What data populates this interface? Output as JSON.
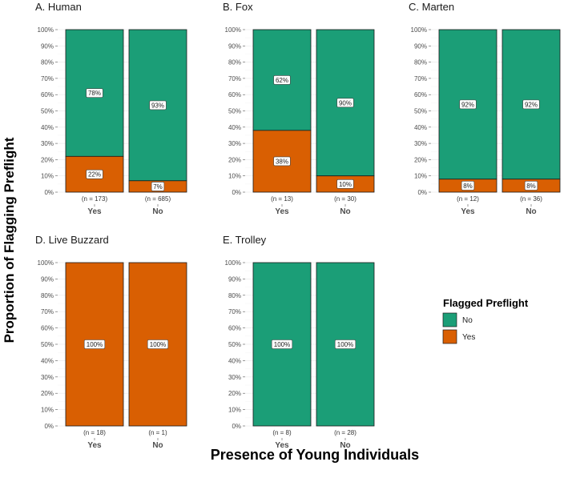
{
  "chart_data": {
    "type": "bar",
    "stacked": true,
    "y_axis_label": "Proportion of Flagging Preflight",
    "x_axis_label": "Presence of Young Individuals",
    "y_ticks": [
      "0%",
      "10%",
      "20%",
      "30%",
      "40%",
      "50%",
      "60%",
      "70%",
      "80%",
      "90%",
      "100%"
    ],
    "ylim": [
      0,
      100
    ],
    "colors": {
      "No": "#1b9e77",
      "Yes": "#d95f02"
    },
    "legend": {
      "title": "Flagged Preflight",
      "position": "right",
      "items": [
        {
          "label": "No",
          "color": "#1b9e77"
        },
        {
          "label": "Yes",
          "color": "#d95f02"
        }
      ]
    },
    "panels": [
      {
        "title": "A. Human",
        "bars": [
          {
            "category": "Yes",
            "n_label": "(n = 173)",
            "yes": 22,
            "no": 78,
            "yes_label": "22%",
            "no_label": "78%"
          },
          {
            "category": "No",
            "n_label": "(n = 685)",
            "yes": 7,
            "no": 93,
            "yes_label": "7%",
            "no_label": "93%"
          }
        ]
      },
      {
        "title": "B. Fox",
        "bars": [
          {
            "category": "Yes",
            "n_label": "(n = 13)",
            "yes": 38,
            "no": 62,
            "yes_label": "38%",
            "no_label": "62%"
          },
          {
            "category": "No",
            "n_label": "(n = 30)",
            "yes": 10,
            "no": 90,
            "yes_label": "10%",
            "no_label": "90%"
          }
        ]
      },
      {
        "title": "C. Marten",
        "bars": [
          {
            "category": "Yes",
            "n_label": "(n = 12)",
            "yes": 8,
            "no": 92,
            "yes_label": "8%",
            "no_label": "92%"
          },
          {
            "category": "No",
            "n_label": "(n = 36)",
            "yes": 8,
            "no": 92,
            "yes_label": "8%",
            "no_label": "92%"
          }
        ]
      },
      {
        "title": "D. Live Buzzard",
        "bars": [
          {
            "category": "Yes",
            "n_label": "(n = 18)",
            "yes": 100,
            "no": 0,
            "yes_label": "100%",
            "no_label": ""
          },
          {
            "category": "No",
            "n_label": "(n = 1)",
            "yes": 100,
            "no": 0,
            "yes_label": "100%",
            "no_label": ""
          }
        ]
      },
      {
        "title": "E. Trolley",
        "bars": [
          {
            "category": "Yes",
            "n_label": "(n = 8)",
            "yes": 0,
            "no": 100,
            "yes_label": "",
            "no_label": "100%"
          },
          {
            "category": "No",
            "n_label": "(n = 28)",
            "yes": 0,
            "no": 100,
            "yes_label": "",
            "no_label": "100%"
          }
        ]
      }
    ]
  }
}
